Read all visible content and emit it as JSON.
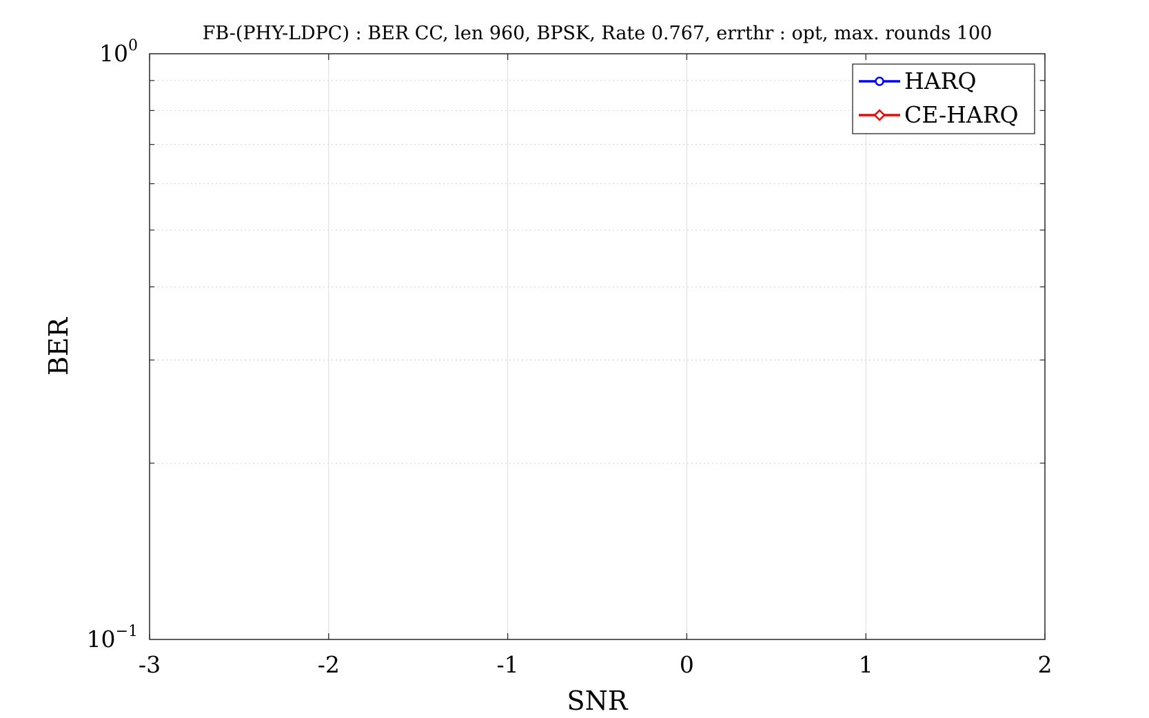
{
  "chart_data": {
    "type": "line",
    "title": "FB-(PHY-LDPC) : BER CC, len 960, BPSK, Rate 0.767, errthr : opt, max. rounds 100",
    "xlabel": "SNR",
    "ylabel": "BER",
    "xlim": [
      -3,
      2
    ],
    "ylim": [
      0.1,
      1
    ],
    "yscale": "log",
    "x_ticks": [
      -3,
      -2,
      -1,
      0,
      1,
      2
    ],
    "x_tick_labels": [
      "-3",
      "-2",
      "-1",
      "0",
      "1",
      "2"
    ],
    "y_tick_labels": [
      {
        "value": 1,
        "base": "10",
        "exponent": "0"
      },
      {
        "value": 0.1,
        "base": "10",
        "exponent": "−1"
      }
    ],
    "grid": true,
    "legend_position": "top-right",
    "series": [
      {
        "name": "HARQ",
        "color": "#0000ff",
        "marker": "circle",
        "x": [],
        "y": []
      },
      {
        "name": "CE-HARQ",
        "color": "#ff0000",
        "marker": "diamond",
        "x": [],
        "y": []
      }
    ]
  }
}
